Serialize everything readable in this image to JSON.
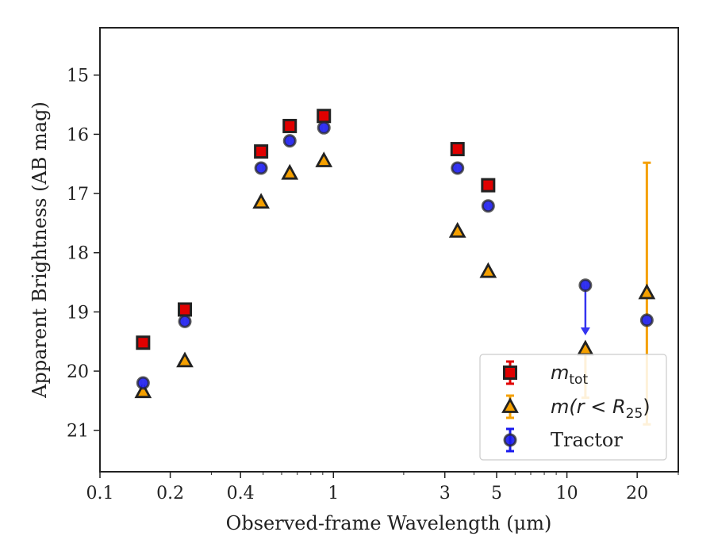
{
  "chart_data": {
    "type": "scatter",
    "title": "",
    "xlabel": "Observed-frame Wavelength (μm)",
    "ylabel": "Apparent Brightness (AB mag)",
    "xscale": "log",
    "xlim": [
      0.1,
      30
    ],
    "ylim": [
      21.7,
      14.2
    ],
    "y_inverted": true,
    "x_ticks": [
      0.1,
      0.2,
      0.4,
      1,
      3,
      5,
      10,
      20
    ],
    "x_tick_labels": [
      "0.1",
      "0.2",
      "0.4",
      "1",
      "3",
      "5",
      "10",
      "20"
    ],
    "y_ticks": [
      15,
      16,
      17,
      18,
      19,
      20,
      21
    ],
    "y_tick_labels": [
      "15",
      "16",
      "17",
      "18",
      "19",
      "20",
      "21"
    ],
    "legend_position": "lower-right",
    "series": [
      {
        "name": "m_tot",
        "legend_label": {
          "main": "m",
          "sub": "tot"
        },
        "marker": "square",
        "color": "#e00000",
        "edge_color": "#222222",
        "points": [
          {
            "x": 0.153,
            "y": 19.52
          },
          {
            "x": 0.231,
            "y": 18.96
          },
          {
            "x": 0.49,
            "y": 16.29
          },
          {
            "x": 0.65,
            "y": 15.86
          },
          {
            "x": 0.91,
            "y": 15.69
          },
          {
            "x": 3.4,
            "y": 16.25
          },
          {
            "x": 4.6,
            "y": 16.86
          }
        ]
      },
      {
        "name": "m(r<R25)",
        "legend_label": {
          "main": "m(r < R",
          "sub": "25",
          "suffix": ")"
        },
        "marker": "triangle",
        "color": "#f5a000",
        "edge_color": "#222222",
        "points": [
          {
            "x": 0.153,
            "y": 20.35
          },
          {
            "x": 0.231,
            "y": 19.83
          },
          {
            "x": 0.49,
            "y": 17.15
          },
          {
            "x": 0.65,
            "y": 16.66
          },
          {
            "x": 0.91,
            "y": 16.45
          },
          {
            "x": 3.4,
            "y": 17.64
          },
          {
            "x": 4.6,
            "y": 18.32
          },
          {
            "x": 12.0,
            "y": 19.63,
            "yerr_lower": 20.45
          },
          {
            "x": 22.0,
            "y": 18.68,
            "yerr_upper": 16.48,
            "yerr_lower": 20.9
          }
        ]
      },
      {
        "name": "Tractor",
        "legend_label": {
          "main": "Tractor"
        },
        "marker": "circle",
        "color": "#1a1aee",
        "edge_color": "#222222",
        "points": [
          {
            "x": 0.153,
            "y": 20.2
          },
          {
            "x": 0.231,
            "y": 19.16
          },
          {
            "x": 0.49,
            "y": 16.57
          },
          {
            "x": 0.65,
            "y": 16.11
          },
          {
            "x": 0.91,
            "y": 15.89
          },
          {
            "x": 3.4,
            "y": 16.57
          },
          {
            "x": 4.6,
            "y": 17.21
          },
          {
            "x": 12.0,
            "y": 18.55,
            "upper_limit_arrow_to": 19.37
          },
          {
            "x": 22.0,
            "y": 19.14
          }
        ]
      }
    ]
  }
}
